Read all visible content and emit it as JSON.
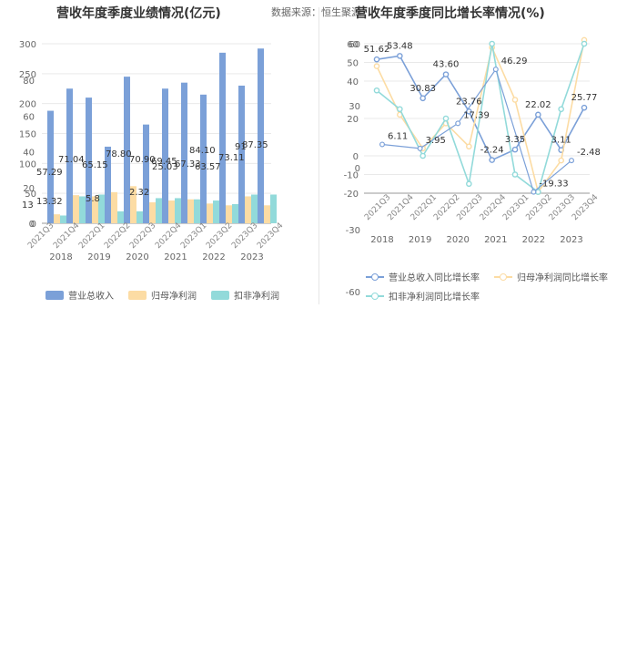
{
  "source": "数据来源：恒生聚源",
  "chart_data": [
    {
      "type": "bar",
      "title": "营收年度季度业绩情况(亿元)",
      "x_group_labels": [
        "2018",
        "2019",
        "2020",
        "2021",
        "2022",
        "2023"
      ],
      "categories": [
        "2018Q1",
        "2018Q2",
        "2018Q3",
        "2018Q4",
        "2019Q1",
        "2019Q2",
        "2019Q3",
        "2019Q4",
        "2020Q1",
        "2020Q2",
        "2020Q3",
        "2020Q4",
        "2021Q1",
        "2021Q2",
        "2021Q3",
        "2021Q4",
        "2022Q1",
        "2022Q2",
        "2022Q3",
        "2022Q4",
        "2023Q1",
        "2023Q2",
        "2023Q3",
        "2023Q4"
      ],
      "series": [
        {
          "name": "营业总收入",
          "color": "#7ba0d8",
          "values": [
            57.29,
            71.04,
            65.15,
            78.8,
            70.9,
            69.45,
            67.33,
            84.1,
            63.57,
            73.11,
            91.0,
            87.35,
            188,
            225,
            210,
            245,
            225,
            235,
            215,
            285,
            230,
            292,
            267,
            null
          ]
        },
        {
          "name": "归母净利润",
          "color": "#fcdca4",
          "values": [
            13.32,
            null,
            5.8,
            null,
            null,
            null,
            null,
            null,
            null,
            null,
            null,
            null,
            null,
            null,
            null,
            null,
            null,
            null,
            null,
            null,
            null,
            null,
            null,
            null
          ]
        },
        {
          "name": "扣非净利润",
          "color": "#92dada",
          "values": [
            null,
            null,
            null,
            null,
            null,
            null,
            null,
            null,
            null,
            null,
            null,
            null,
            null,
            null,
            null,
            null,
            null,
            null,
            null,
            null,
            null,
            null,
            null,
            null
          ]
        }
      ],
      "bar_groups": [
        {
          "label": "2018",
          "rev": [
            188,
            225
          ],
          "net": [
            15,
            47
          ],
          "ded": [
            13,
            45
          ]
        },
        {
          "label": "2019",
          "rev": [
            210,
            128
          ],
          "net": [
            45,
            52
          ],
          "ded": [
            48,
            20
          ]
        },
        {
          "label": "2020",
          "rev": [
            245,
            165
          ],
          "net": [
            62,
            35
          ],
          "ded": [
            20,
            42
          ]
        },
        {
          "label": "2021",
          "rev": [
            225,
            235
          ],
          "net": [
            38,
            40
          ],
          "ded": [
            42,
            40
          ]
        },
        {
          "label": "2022",
          "rev": [
            215,
            285
          ],
          "net": [
            33,
            30
          ],
          "ded": [
            38,
            32
          ]
        },
        {
          "label": "2023",
          "rev": [
            230,
            292
          ],
          "net": [
            45,
            30
          ],
          "ded": [
            48,
            48
          ]
        }
      ],
      "overlay_labels": [
        "57.29",
        "71.04",
        "65.15",
        "78.80",
        "70.90",
        "69.45",
        "67.33",
        "84.10",
        "63.57",
        "73.11",
        "91",
        "87.35",
        "13.32",
        "5.8",
        "13",
        "25.03",
        "2.32"
      ],
      "y_ticks_left": [
        "0",
        "50",
        "100",
        "150",
        "200",
        "250",
        "300"
      ],
      "y_ticks_overlay": [
        "0",
        "20",
        "40",
        "60",
        "80"
      ],
      "ylim": [
        0,
        300
      ],
      "legend": [
        "营业总收入",
        "归母净利润",
        "扣非净利润"
      ]
    },
    {
      "type": "line",
      "title": "营收年度季度同比增长率情况(%)",
      "x_quarter_labels": [
        "2021Q3",
        "2021Q4",
        "2022Q1",
        "2022Q2",
        "2022Q3",
        "2022Q4",
        "2023Q1",
        "2023Q2",
        "2023Q3",
        "2023Q4"
      ],
      "x_year_labels": [
        "2018",
        "2019",
        "2020",
        "2021",
        "2022",
        "2023"
      ],
      "series": [
        {
          "name": "营业总收入同比增长率",
          "color": "#7ba0d8",
          "values": [
            51.62,
            53.48,
            30.83,
            43.6,
            23.76,
            -2.24,
            3.35,
            22.02,
            3.11,
            25.77
          ]
        },
        {
          "name": "归母净利润同比增长率",
          "color": "#fcdca4",
          "values": [
            48,
            22,
            3.95,
            17.39,
            5,
            58,
            30,
            -19.33,
            -2.48,
            62
          ]
        },
        {
          "name": "扣非净利润同比增长率",
          "color": "#92dada",
          "values": [
            35,
            25,
            0,
            20,
            -15,
            60,
            -10,
            -19.33,
            25,
            60
          ]
        }
      ],
      "secondary_series": [
        {
          "name": "营业总收入同比增长率(年度)",
          "values": [
            6.11,
            3.95,
            17.39,
            46.29,
            -19.33,
            -2.48
          ]
        }
      ],
      "point_labels": [
        "51.62",
        "53.48",
        "30.83",
        "43.60",
        "23.76",
        "-2.24",
        "3.35",
        "22.02",
        "3.11",
        "25.77",
        "6.11",
        "3.95",
        "17.39",
        "46.29",
        "-19.33",
        "-2.48"
      ],
      "y_ticks_left": [
        "-20",
        "-10",
        "0",
        "20",
        "40",
        "50",
        "60"
      ],
      "y_ticks_overlay": [
        "-60",
        "-30",
        "0",
        "30",
        "60"
      ],
      "ylim": [
        -20,
        60
      ],
      "legend": [
        "营业总收入同比增长率",
        "归母净利润同比增长率",
        "扣非净利润同比增长率"
      ]
    }
  ]
}
